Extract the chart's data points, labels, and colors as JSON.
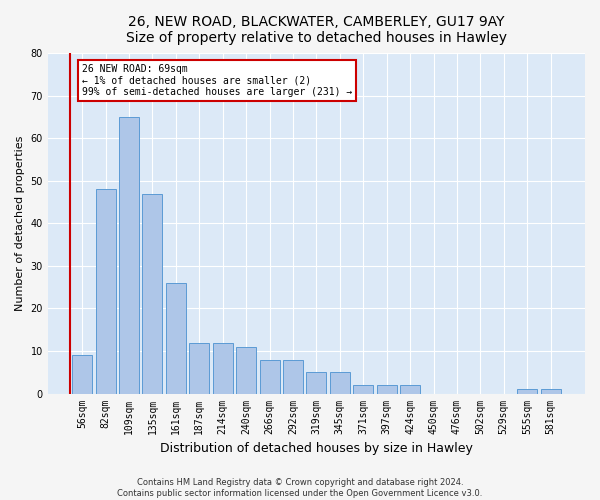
{
  "title_line1": "26, NEW ROAD, BLACKWATER, CAMBERLEY, GU17 9AY",
  "title_line2": "Size of property relative to detached houses in Hawley",
  "xlabel": "Distribution of detached houses by size in Hawley",
  "ylabel": "Number of detached properties",
  "footer_line1": "Contains HM Land Registry data © Crown copyright and database right 2024.",
  "footer_line2": "Contains public sector information licensed under the Open Government Licence v3.0.",
  "annotation_line1": "26 NEW ROAD: 69sqm",
  "annotation_line2": "← 1% of detached houses are smaller (2)",
  "annotation_line3": "99% of semi-detached houses are larger (231) →",
  "bar_categories": [
    "56sqm",
    "82sqm",
    "109sqm",
    "135sqm",
    "161sqm",
    "187sqm",
    "214sqm",
    "240sqm",
    "266sqm",
    "292sqm",
    "319sqm",
    "345sqm",
    "371sqm",
    "397sqm",
    "424sqm",
    "450sqm",
    "476sqm",
    "502sqm",
    "529sqm",
    "555sqm",
    "581sqm"
  ],
  "bar_values": [
    9,
    48,
    65,
    47,
    26,
    12,
    12,
    11,
    8,
    8,
    5,
    5,
    2,
    2,
    2,
    0,
    0,
    0,
    0,
    1,
    1
  ],
  "bar_color": "#aec6e8",
  "bar_edge_color": "#5b9bd5",
  "background_color": "#dce9f7",
  "fig_background_color": "#f5f5f5",
  "grid_color": "#ffffff",
  "ylim": [
    0,
    80
  ],
  "yticks": [
    0,
    10,
    20,
    30,
    40,
    50,
    60,
    70,
    80
  ],
  "subject_line_color": "#cc0000",
  "annotation_box_color": "#ffffff",
  "annotation_box_edge_color": "#cc0000",
  "title_fontsize": 10,
  "axis_label_fontsize": 8,
  "tick_fontsize": 7,
  "annotation_fontsize": 7,
  "footer_fontsize": 6
}
